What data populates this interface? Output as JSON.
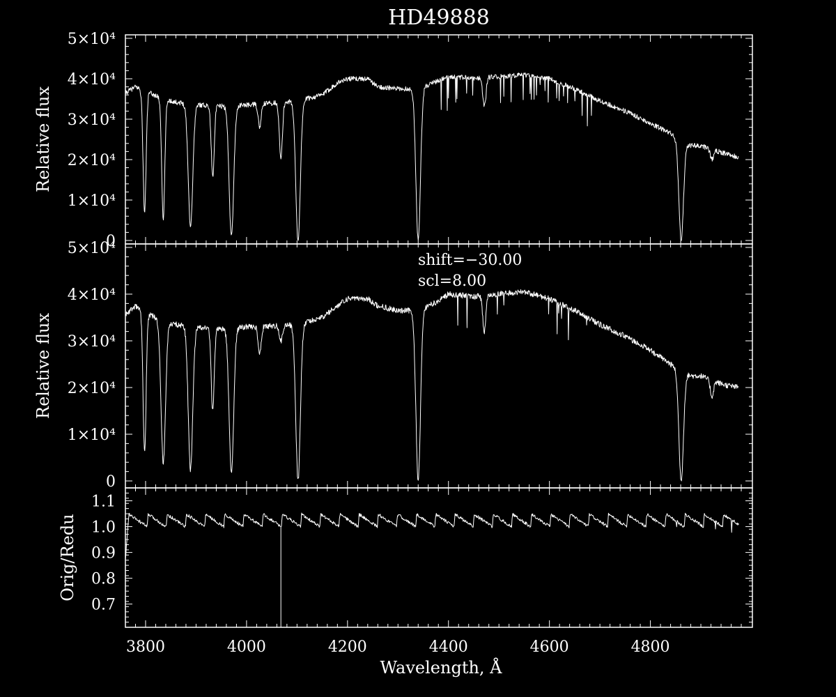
{
  "chart_data": [
    {
      "type": "line",
      "title": "HD49888",
      "ylabel": "Relative flux",
      "xlabel": "",
      "xlim": [
        3760,
        4980
      ],
      "ylim": [
        0,
        50000
      ],
      "yticks": [
        {
          "value": 0,
          "label": "0"
        },
        {
          "value": 10000,
          "label": "1×10⁴"
        },
        {
          "value": 20000,
          "label": "2×10⁴"
        },
        {
          "value": 30000,
          "label": "3×10⁴"
        },
        {
          "value": 40000,
          "label": "4×10⁴"
        },
        {
          "value": 50000,
          "label": "5×10⁴"
        }
      ],
      "annotations": [],
      "series": [
        {
          "continuum": [
            [
              3760,
              36500
            ],
            [
              3780,
              38000
            ],
            [
              3800,
              37000
            ],
            [
              3830,
              35200
            ],
            [
              3860,
              34200
            ],
            [
              3900,
              33600
            ],
            [
              3950,
              33200
            ],
            [
              4000,
              33500
            ],
            [
              4050,
              34000
            ],
            [
              4100,
              34500
            ],
            [
              4150,
              36000
            ],
            [
              4180,
              39000
            ],
            [
              4200,
              40000
            ],
            [
              4240,
              40000
            ],
            [
              4260,
              38000
            ],
            [
              4300,
              37500
            ],
            [
              4340,
              37500
            ],
            [
              4380,
              39500
            ],
            [
              4400,
              40500
            ],
            [
              4450,
              40200
            ],
            [
              4500,
              40500
            ],
            [
              4550,
              41000
            ],
            [
              4600,
              40000
            ],
            [
              4650,
              37500
            ],
            [
              4700,
              34500
            ],
            [
              4750,
              32000
            ],
            [
              4800,
              29000
            ],
            [
              4840,
              26500
            ],
            [
              4860,
              24500
            ],
            [
              4880,
              23500
            ],
            [
              4900,
              23500
            ],
            [
              4920,
              22500
            ],
            [
              4950,
              21500
            ],
            [
              4975,
              20500
            ]
          ],
          "absorption_lines": [
            {
              "wavelength": 3798,
              "depth": 7000
            },
            {
              "wavelength": 3835,
              "depth": 5000
            },
            {
              "wavelength": 3889,
              "depth": 3500
            },
            {
              "wavelength": 3933,
              "depth": 16000
            },
            {
              "wavelength": 3970,
              "depth": 1000
            },
            {
              "wavelength": 4026,
              "depth": 28000
            },
            {
              "wavelength": 4068,
              "depth": 20000
            },
            {
              "wavelength": 4102,
              "depth": 0
            },
            {
              "wavelength": 4340,
              "depth": 0
            },
            {
              "wavelength": 4471,
              "depth": 33000
            },
            {
              "wavelength": 4861,
              "depth": 0
            },
            {
              "wavelength": 4922,
              "depth": 20000
            }
          ]
        }
      ]
    },
    {
      "type": "line",
      "title": "",
      "ylabel": "Relative flux",
      "xlabel": "",
      "xlim": [
        3760,
        4980
      ],
      "ylim": [
        0,
        50000
      ],
      "yticks": [
        {
          "value": 0,
          "label": "0"
        },
        {
          "value": 10000,
          "label": "1×10⁴"
        },
        {
          "value": 20000,
          "label": "2×10⁴"
        },
        {
          "value": 30000,
          "label": "3×10⁴"
        },
        {
          "value": 40000,
          "label": "4×10⁴"
        },
        {
          "value": 50000,
          "label": "5×10⁴"
        }
      ],
      "annotations": [
        "shift=−30.00",
        "scl=8.00"
      ],
      "series": [
        {
          "continuum": [
            [
              3760,
              35500
            ],
            [
              3780,
              37500
            ],
            [
              3800,
              36000
            ],
            [
              3830,
              34500
            ],
            [
              3860,
              33500
            ],
            [
              3900,
              33000
            ],
            [
              3950,
              32500
            ],
            [
              4000,
              33000
            ],
            [
              4050,
              33200
            ],
            [
              4100,
              33500
            ],
            [
              4150,
              35000
            ],
            [
              4180,
              37500
            ],
            [
              4200,
              39000
            ],
            [
              4240,
              39000
            ],
            [
              4260,
              37500
            ],
            [
              4300,
              36500
            ],
            [
              4340,
              36500
            ],
            [
              4380,
              38500
            ],
            [
              4400,
              40000
            ],
            [
              4450,
              39500
            ],
            [
              4500,
              40000
            ],
            [
              4550,
              40500
            ],
            [
              4600,
              39000
            ],
            [
              4650,
              36500
            ],
            [
              4700,
              33500
            ],
            [
              4750,
              31000
            ],
            [
              4800,
              28000
            ],
            [
              4840,
              25000
            ],
            [
              4860,
              23500
            ],
            [
              4880,
              22500
            ],
            [
              4900,
              22500
            ],
            [
              4920,
              21500
            ],
            [
              4950,
              20500
            ],
            [
              4975,
              20000
            ]
          ],
          "absorption_lines": [
            {
              "wavelength": 3798,
              "depth": 6000
            },
            {
              "wavelength": 3835,
              "depth": 4000
            },
            {
              "wavelength": 3889,
              "depth": 2500
            },
            {
              "wavelength": 3933,
              "depth": 15000
            },
            {
              "wavelength": 3970,
              "depth": 1500
            },
            {
              "wavelength": 4026,
              "depth": 27000
            },
            {
              "wavelength": 4068,
              "depth": 30000
            },
            {
              "wavelength": 4102,
              "depth": 0
            },
            {
              "wavelength": 4340,
              "depth": 0
            },
            {
              "wavelength": 4471,
              "depth": 32000
            },
            {
              "wavelength": 4861,
              "depth": 0
            },
            {
              "wavelength": 4922,
              "depth": 18000
            }
          ]
        }
      ]
    },
    {
      "type": "line",
      "title": "",
      "ylabel": "Orig/Redu",
      "xlabel": "Wavelength, Å",
      "xlim": [
        3760,
        4980
      ],
      "ylim": [
        0.61,
        1.15
      ],
      "xticks": [
        {
          "value": 3800,
          "label": "3800"
        },
        {
          "value": 4000,
          "label": "4000"
        },
        {
          "value": 4200,
          "label": "4200"
        },
        {
          "value": 4400,
          "label": "4400"
        },
        {
          "value": 4600,
          "label": "4600"
        },
        {
          "value": 4800,
          "label": "4800"
        }
      ],
      "yticks": [
        {
          "value": 0.7,
          "label": "0.7"
        },
        {
          "value": 0.8,
          "label": "0.8"
        },
        {
          "value": 0.9,
          "label": "0.9"
        },
        {
          "value": 1.0,
          "label": "1.0"
        },
        {
          "value": 1.1,
          "label": "1.1"
        }
      ],
      "annotations": [],
      "series": [
        {
          "sawtooth_period": 38,
          "sawtooth_low": 1.0,
          "sawtooth_high": 1.05,
          "dropout_wavelength": 4068,
          "dropout_value": 0.61
        }
      ]
    }
  ]
}
